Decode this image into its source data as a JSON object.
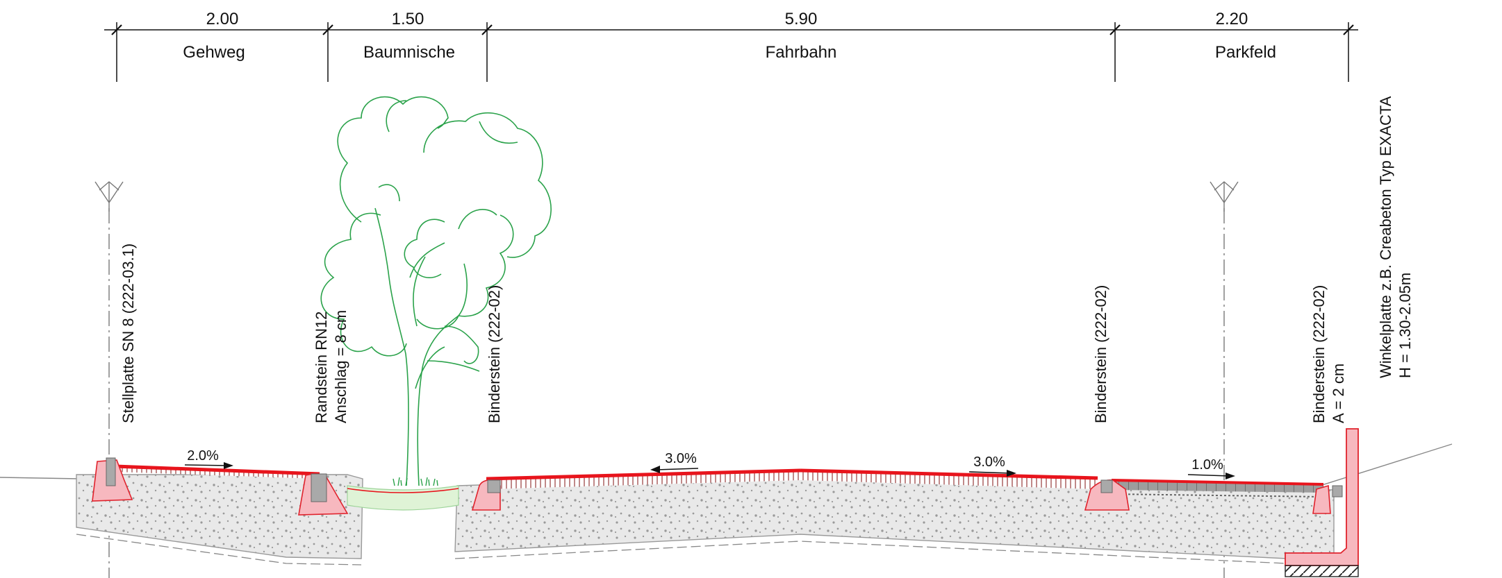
{
  "dimensions": [
    {
      "value": "2.00",
      "zone": "Gehweg"
    },
    {
      "value": "1.50",
      "zone": "Baumnische"
    },
    {
      "value": "5.90",
      "zone": "Fahrbahn"
    },
    {
      "value": "2.20",
      "zone": "Parkfeld"
    }
  ],
  "annotations": {
    "stellplatte": [
      "Stellplatte SN 8 (222-03.1)"
    ],
    "randstein": [
      "Randstein RN12",
      "Anschlag = 8 cm"
    ],
    "binderstein_1": [
      "Binderstein (222-02)"
    ],
    "binderstein_2": [
      "Binderstein (222-02)"
    ],
    "binderstein_3": [
      "Binderstein (222-02)",
      "A = 2 cm"
    ],
    "winkelplatte": [
      "Winkelplatte z.B. Creabeton Typ EXACTA",
      "H = 1.30-2.05m"
    ]
  },
  "slopes": {
    "gehweg": "2.0%",
    "fahrbahn_left": "3.0%",
    "fahrbahn_right": "3.0%",
    "parkfeld": "1.0%"
  },
  "colors": {
    "surface": "#e8141c",
    "curb_fill": "#f7b8bf",
    "curb_stroke": "#e0222c",
    "foundation": "#e9e9e9",
    "tree": "#2aa24a",
    "tree_pit": "#dff3d6",
    "curb_core": "#a9a9a9"
  }
}
